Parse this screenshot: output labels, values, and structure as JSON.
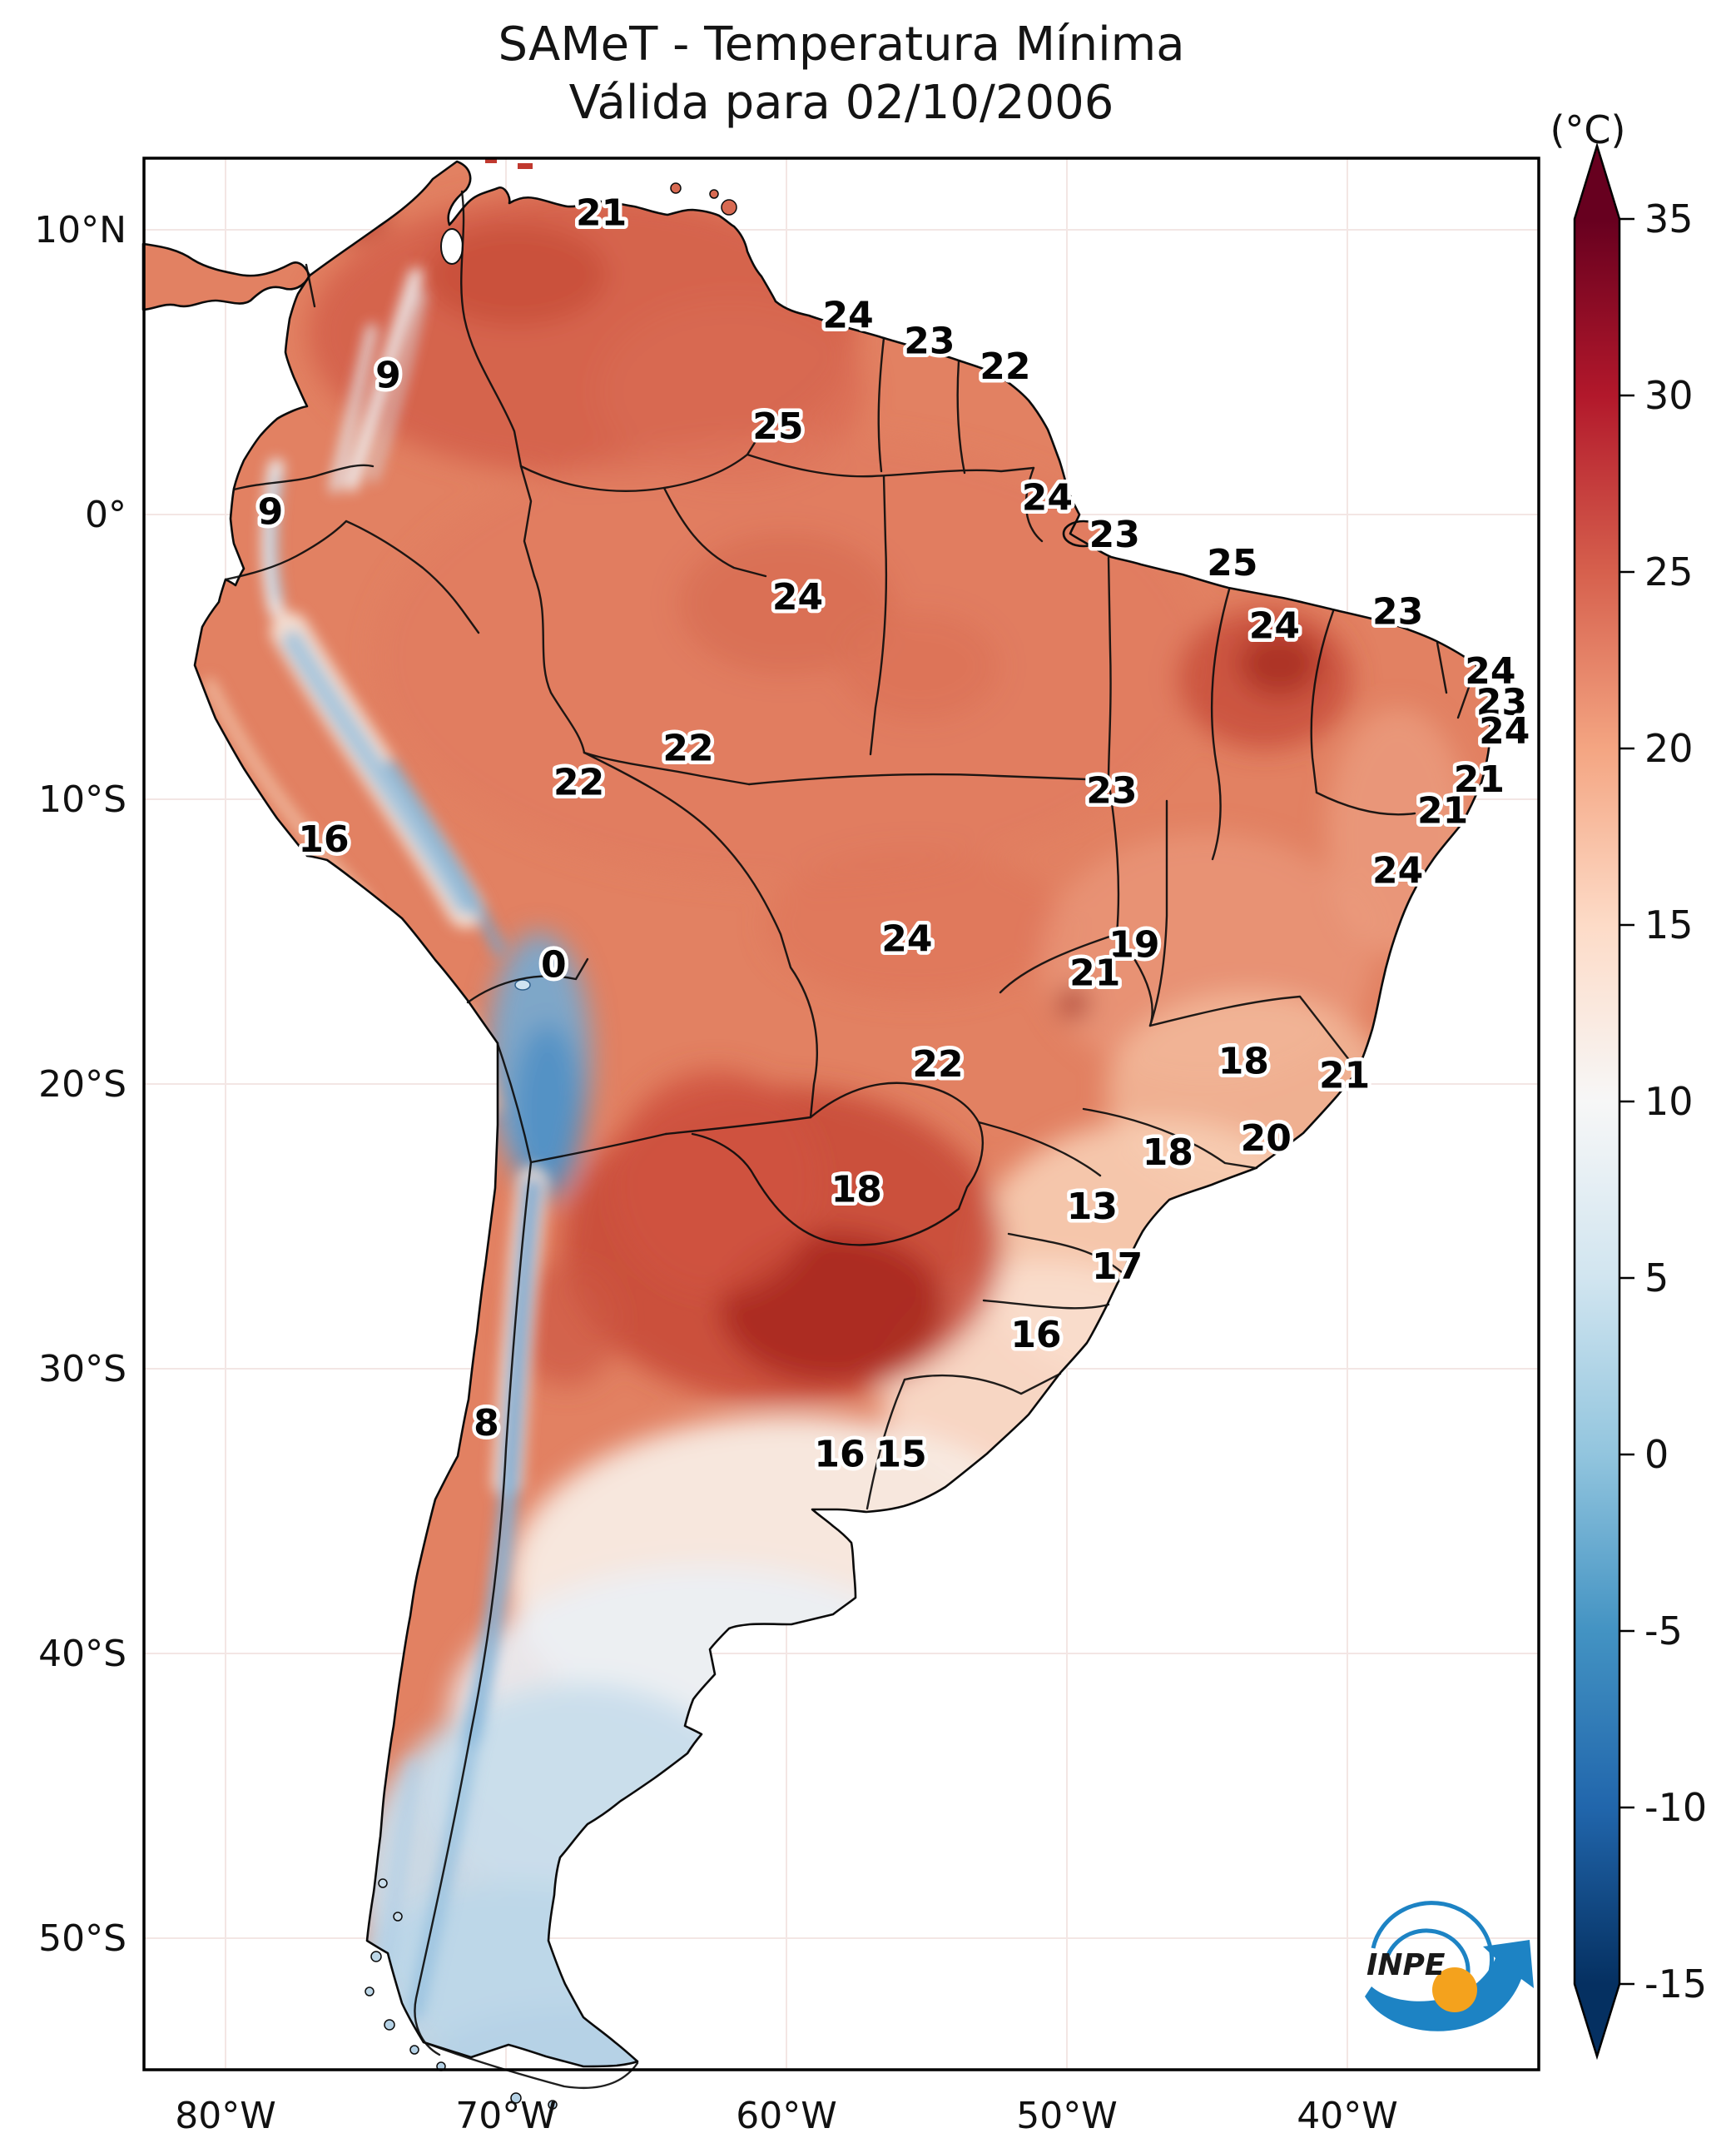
{
  "title": {
    "line1": "SAMeT - Temperatura Mínima",
    "line2": "Válida para 02/10/2006"
  },
  "colorbar": {
    "unit": "(°C)",
    "ticks": [
      35,
      30,
      25,
      20,
      15,
      10,
      5,
      0,
      -5,
      -10,
      -15
    ],
    "vmax": 35,
    "vmin": -15,
    "palette_top_to_bottom": [
      "#67001f",
      "#b2182b",
      "#d6604d",
      "#f4a582",
      "#fddbc7",
      "#f7f7f7",
      "#d1e5f0",
      "#92c5de",
      "#4393c3",
      "#2166ac",
      "#053061"
    ]
  },
  "axes": {
    "lat": {
      "values": [
        10,
        0,
        -10,
        -20,
        -30,
        -40,
        -50
      ],
      "labels": [
        "10°N",
        "0°",
        "10°S",
        "20°S",
        "30°S",
        "40°S",
        "50°S"
      ]
    },
    "lon": {
      "values": [
        -80,
        -70,
        -60,
        -50,
        -40
      ],
      "labels": [
        "80°W",
        "70°W",
        "60°W",
        "50°W",
        "40°W"
      ]
    }
  },
  "logo": {
    "text": "INPE"
  },
  "chart_data": {
    "type": "heatmap",
    "title": "SAMeT - Temperatura Mínima",
    "subtitle": "Válida para 02/10/2006",
    "units": "°C",
    "colormap": "RdBu_r",
    "colorbar_range": [
      -15,
      35
    ],
    "colorbar_ticks": [
      35,
      30,
      25,
      20,
      15,
      10,
      5,
      0,
      -5,
      -10,
      -15
    ],
    "x_axis_lon_ticks": [
      -80,
      -70,
      -60,
      -50,
      -40
    ],
    "y_axis_lat_ticks": [
      10,
      0,
      -10,
      -20,
      -30,
      -40,
      -50
    ],
    "station_labels": [
      {
        "t": 21,
        "lon": -66.6,
        "lat": 10.6
      },
      {
        "t": 24,
        "lon": -57.8,
        "lat": 7.0
      },
      {
        "t": 23,
        "lon": -54.9,
        "lat": 6.1
      },
      {
        "t": 22,
        "lon": -52.2,
        "lat": 5.2
      },
      {
        "t": 25,
        "lon": -60.3,
        "lat": 3.1
      },
      {
        "t": 9,
        "lon": -74.2,
        "lat": 4.9
      },
      {
        "t": 9,
        "lon": -78.4,
        "lat": 0.1
      },
      {
        "t": 24,
        "lon": -59.6,
        "lat": -2.9
      },
      {
        "t": 24,
        "lon": -50.7,
        "lat": 0.6
      },
      {
        "t": 23,
        "lon": -48.3,
        "lat": -0.7
      },
      {
        "t": 25,
        "lon": -44.1,
        "lat": -1.7
      },
      {
        "t": 24,
        "lon": -42.6,
        "lat": -3.9
      },
      {
        "t": 23,
        "lon": -38.2,
        "lat": -3.4
      },
      {
        "t": 24,
        "lon": -34.9,
        "lat": -5.5
      },
      {
        "t": 23,
        "lon": -34.5,
        "lat": -6.6
      },
      {
        "t": 24,
        "lon": -34.4,
        "lat": -7.6
      },
      {
        "t": 21,
        "lon": -35.3,
        "lat": -9.3
      },
      {
        "t": 21,
        "lon": -36.6,
        "lat": -10.4
      },
      {
        "t": 24,
        "lon": -38.2,
        "lat": -12.5
      },
      {
        "t": 22,
        "lon": -63.5,
        "lat": -8.2
      },
      {
        "t": 22,
        "lon": -67.4,
        "lat": -9.4
      },
      {
        "t": 23,
        "lon": -48.4,
        "lat": -9.7
      },
      {
        "t": 16,
        "lon": -76.5,
        "lat": -11.4
      },
      {
        "t": 0,
        "lon": -68.3,
        "lat": -15.8
      },
      {
        "t": 24,
        "lon": -55.7,
        "lat": -14.9
      },
      {
        "t": 19,
        "lon": -47.6,
        "lat": -15.1
      },
      {
        "t": 21,
        "lon": -49.0,
        "lat": -16.1
      },
      {
        "t": 22,
        "lon": -54.6,
        "lat": -19.3
      },
      {
        "t": 18,
        "lon": -43.7,
        "lat": -19.2
      },
      {
        "t": 21,
        "lon": -40.1,
        "lat": -19.7
      },
      {
        "t": 18,
        "lon": -57.5,
        "lat": -23.7
      },
      {
        "t": 13,
        "lon": -49.1,
        "lat": -24.3
      },
      {
        "t": 20,
        "lon": -42.9,
        "lat": -21.9
      },
      {
        "t": 18,
        "lon": -46.4,
        "lat": -22.4
      },
      {
        "t": 17,
        "lon": -48.2,
        "lat": -26.4
      },
      {
        "t": 16,
        "lon": -51.1,
        "lat": -28.8
      },
      {
        "t": 8,
        "lon": -70.7,
        "lat": -31.9
      },
      {
        "t": 16,
        "lon": -58.1,
        "lat": -33.0
      },
      {
        "t": 15,
        "lon": -55.9,
        "lat": -33.0
      }
    ]
  }
}
